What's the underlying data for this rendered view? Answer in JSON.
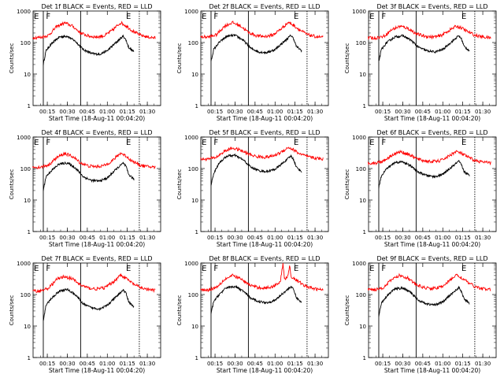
{
  "x_tick_labels": [
    "00:15",
    "00:30",
    "00:45",
    "01:00",
    "01:15",
    "01:30"
  ],
  "y_tick_labels": [
    "1",
    "10",
    "100",
    "1000"
  ],
  "ylabel": "Counts/sec",
  "xlabel": "Start Time (18-Aug-11 00:04:20)",
  "colors": {
    "events": "#000000",
    "lld": "#ff0000"
  },
  "chart_data": [
    {
      "type": "line",
      "title": "Det 1f BLACK = Events, RED = LLD",
      "markers": [
        "E",
        "F",
        "E"
      ],
      "y_scale": "log",
      "ylim": [
        1,
        1000
      ],
      "xlim": [
        "00:04:20",
        "01:40:00"
      ],
      "series": [
        {
          "name": "Events",
          "x": [
            "00:12",
            "00:14",
            "00:18",
            "00:24",
            "00:30",
            "00:36",
            "00:42",
            "00:48",
            "00:54",
            "01:00",
            "01:06",
            "01:12",
            "01:14",
            "01:16",
            "01:20"
          ],
          "values": [
            20,
            55,
            90,
            150,
            160,
            110,
            60,
            45,
            42,
            55,
            95,
            160,
            120,
            70,
            50
          ]
        },
        {
          "name": "LLD",
          "x": [
            "00:04",
            "00:10",
            "00:16",
            "00:22",
            "00:28",
            "00:34",
            "00:40",
            "00:46",
            "00:52",
            "00:58",
            "01:04",
            "01:10",
            "01:14",
            "01:18",
            "01:24",
            "01:30",
            "01:36"
          ],
          "values": [
            145,
            145,
            170,
            320,
            420,
            330,
            200,
            160,
            150,
            165,
            250,
            430,
            340,
            250,
            175,
            150,
            140
          ]
        }
      ]
    },
    {
      "type": "line",
      "title": "Det 2f BLACK = Events, RED = LLD",
      "markers": [
        "E",
        "F",
        "E"
      ],
      "y_scale": "log",
      "ylim": [
        1,
        1000
      ],
      "xlim": [
        "00:04:20",
        "01:40:00"
      ],
      "series": [
        {
          "name": "Events",
          "x": [
            "00:12",
            "00:14",
            "00:18",
            "00:24",
            "00:30",
            "00:36",
            "00:42",
            "00:48",
            "00:54",
            "01:00",
            "01:06",
            "01:12",
            "01:14",
            "01:16",
            "01:20"
          ],
          "values": [
            25,
            60,
            100,
            160,
            170,
            120,
            65,
            50,
            48,
            60,
            100,
            170,
            130,
            75,
            55
          ]
        },
        {
          "name": "LLD",
          "x": [
            "00:04",
            "00:10",
            "00:16",
            "00:22",
            "00:28",
            "00:34",
            "00:40",
            "00:46",
            "00:52",
            "00:58",
            "01:04",
            "01:10",
            "01:14",
            "01:18",
            "01:24",
            "01:30",
            "01:36"
          ],
          "values": [
            150,
            150,
            175,
            330,
            430,
            340,
            210,
            165,
            155,
            170,
            260,
            440,
            350,
            260,
            180,
            155,
            145
          ]
        }
      ]
    },
    {
      "type": "line",
      "title": "Det 3f BLACK = Events, RED = LLD",
      "markers": [
        "E",
        "F",
        "E"
      ],
      "y_scale": "log",
      "ylim": [
        1,
        1000
      ],
      "xlim": [
        "00:04:20",
        "01:40:00"
      ],
      "series": [
        {
          "name": "Events",
          "x": [
            "00:12",
            "00:14",
            "00:18",
            "00:24",
            "00:30",
            "00:36",
            "00:42",
            "00:48",
            "00:54",
            "01:00",
            "01:06",
            "01:12",
            "01:14",
            "01:16",
            "01:20"
          ],
          "values": [
            25,
            60,
            100,
            150,
            165,
            120,
            70,
            55,
            50,
            60,
            100,
            165,
            130,
            75,
            55
          ]
        },
        {
          "name": "LLD",
          "x": [
            "00:04",
            "00:10",
            "00:16",
            "00:22",
            "00:28",
            "00:34",
            "00:40",
            "00:46",
            "00:52",
            "00:58",
            "01:04",
            "01:10",
            "01:14",
            "01:18",
            "01:24",
            "01:30",
            "01:36"
          ],
          "values": [
            140,
            140,
            160,
            260,
            330,
            280,
            190,
            160,
            150,
            160,
            230,
            330,
            290,
            230,
            170,
            150,
            140
          ]
        }
      ]
    },
    {
      "type": "line",
      "title": "Det 4f BLACK = Events, RED = LLD",
      "markers": [
        "E",
        "F",
        "E"
      ],
      "y_scale": "log",
      "ylim": [
        1,
        1000
      ],
      "xlim": [
        "00:04:20",
        "01:40:00"
      ],
      "series": [
        {
          "name": "Events",
          "x": [
            "00:12",
            "00:14",
            "00:18",
            "00:24",
            "00:30",
            "00:36",
            "00:42",
            "00:48",
            "00:54",
            "01:00",
            "01:06",
            "01:12",
            "01:14",
            "01:16",
            "01:20"
          ],
          "values": [
            20,
            55,
            85,
            140,
            150,
            105,
            55,
            42,
            40,
            50,
            90,
            150,
            115,
            65,
            45
          ]
        },
        {
          "name": "LLD",
          "x": [
            "00:04",
            "00:10",
            "00:16",
            "00:22",
            "00:28",
            "00:34",
            "00:40",
            "00:46",
            "00:52",
            "00:58",
            "01:04",
            "01:10",
            "01:14",
            "01:18",
            "01:24",
            "01:30",
            "01:36"
          ],
          "values": [
            110,
            110,
            130,
            220,
            300,
            240,
            150,
            120,
            115,
            125,
            180,
            310,
            250,
            180,
            130,
            115,
            110
          ]
        }
      ]
    },
    {
      "type": "line",
      "title": "Det 5f BLACK = Events, RED = LLD",
      "markers": [
        "E",
        "F",
        "E"
      ],
      "y_scale": "log",
      "ylim": [
        1,
        1000
      ],
      "xlim": [
        "00:04:20",
        "01:40:00"
      ],
      "series": [
        {
          "name": "Events",
          "x": [
            "00:12",
            "00:14",
            "00:18",
            "00:24",
            "00:30",
            "00:36",
            "00:42",
            "00:48",
            "00:54",
            "01:00",
            "01:06",
            "01:12",
            "01:14",
            "01:16",
            "01:20"
          ],
          "values": [
            30,
            70,
            150,
            250,
            260,
            190,
            110,
            85,
            80,
            95,
            150,
            250,
            190,
            110,
            80
          ]
        },
        {
          "name": "LLD",
          "x": [
            "00:04",
            "00:10",
            "00:16",
            "00:22",
            "00:28",
            "00:34",
            "00:40",
            "00:46",
            "00:52",
            "00:58",
            "01:04",
            "01:10",
            "01:14",
            "01:18",
            "01:24",
            "01:30",
            "01:36"
          ],
          "values": [
            200,
            200,
            230,
            350,
            450,
            380,
            290,
            240,
            230,
            245,
            320,
            470,
            390,
            300,
            240,
            215,
            200
          ]
        }
      ]
    },
    {
      "type": "line",
      "title": "Det 6f BLACK = Events, RED = LLD",
      "markers": [
        "E",
        "F",
        "E"
      ],
      "y_scale": "log",
      "ylim": [
        1,
        1000
      ],
      "xlim": [
        "00:04:20",
        "01:40:00"
      ],
      "series": [
        {
          "name": "Events",
          "x": [
            "00:12",
            "00:14",
            "00:18",
            "00:24",
            "00:30",
            "00:36",
            "00:42",
            "00:48",
            "00:54",
            "01:00",
            "01:06",
            "01:12",
            "01:14",
            "01:16",
            "01:20"
          ],
          "values": [
            25,
            60,
            100,
            155,
            165,
            120,
            75,
            60,
            55,
            65,
            105,
            170,
            130,
            80,
            60
          ]
        },
        {
          "name": "LLD",
          "x": [
            "00:04",
            "00:10",
            "00:16",
            "00:22",
            "00:28",
            "00:34",
            "00:40",
            "00:46",
            "00:52",
            "00:58",
            "01:04",
            "01:10",
            "01:14",
            "01:18",
            "01:24",
            "01:30",
            "01:36"
          ],
          "values": [
            150,
            150,
            180,
            270,
            340,
            290,
            210,
            175,
            165,
            175,
            240,
            350,
            300,
            240,
            180,
            160,
            150
          ]
        }
      ]
    },
    {
      "type": "line",
      "title": "Det 7f BLACK = Events, RED = LLD",
      "markers": [
        "E",
        "F",
        "E"
      ],
      "y_scale": "log",
      "ylim": [
        1,
        1000
      ],
      "xlim": [
        "00:04:20",
        "01:40:00"
      ],
      "series": [
        {
          "name": "Events",
          "x": [
            "00:12",
            "00:14",
            "00:18",
            "00:24",
            "00:30",
            "00:36",
            "00:42",
            "00:48",
            "00:54",
            "01:00",
            "01:06",
            "01:12",
            "01:14",
            "01:16",
            "01:20"
          ],
          "values": [
            15,
            45,
            75,
            130,
            145,
            100,
            50,
            38,
            35,
            45,
            80,
            140,
            110,
            60,
            40
          ]
        },
        {
          "name": "LLD",
          "x": [
            "00:04",
            "00:10",
            "00:16",
            "00:22",
            "00:28",
            "00:34",
            "00:40",
            "00:46",
            "00:52",
            "00:58",
            "01:04",
            "01:10",
            "01:14",
            "01:18",
            "01:24",
            "01:30",
            "01:36"
          ],
          "values": [
            130,
            130,
            160,
            300,
            380,
            310,
            200,
            160,
            150,
            165,
            240,
            420,
            330,
            240,
            170,
            145,
            135
          ]
        }
      ]
    },
    {
      "type": "line",
      "title": "Det 8f BLACK = Events, RED = LLD",
      "markers": [
        "E",
        "F",
        "E"
      ],
      "y_scale": "log",
      "ylim": [
        1,
        1000
      ],
      "xlim": [
        "00:04:20",
        "01:40:00"
      ],
      "series": [
        {
          "name": "Events",
          "x": [
            "00:12",
            "00:14",
            "00:18",
            "00:24",
            "00:30",
            "00:36",
            "00:42",
            "00:48",
            "00:54",
            "01:00",
            "01:06",
            "01:12",
            "01:14",
            "01:16",
            "01:20"
          ],
          "values": [
            25,
            60,
            100,
            170,
            180,
            130,
            75,
            60,
            55,
            65,
            110,
            180,
            140,
            80,
            55
          ]
        },
        {
          "name": "LLD",
          "x": [
            "00:04",
            "00:10",
            "00:16",
            "00:22",
            "00:28",
            "00:34",
            "00:40",
            "00:46",
            "00:52",
            "00:58",
            "01:04",
            "01:06",
            "01:07",
            "01:10",
            "01:11",
            "01:12",
            "01:14",
            "01:18",
            "01:24",
            "01:30",
            "01:36"
          ],
          "values": [
            140,
            140,
            170,
            300,
            400,
            320,
            210,
            170,
            160,
            175,
            260,
            1000,
            300,
            420,
            1000,
            360,
            330,
            250,
            175,
            150,
            140
          ]
        }
      ]
    },
    {
      "type": "line",
      "title": "Det 9f BLACK = Events, RED = LLD",
      "markers": [
        "E",
        "F",
        "E"
      ],
      "y_scale": "log",
      "ylim": [
        1,
        1000
      ],
      "xlim": [
        "00:04:20",
        "01:40:00"
      ],
      "series": [
        {
          "name": "Events",
          "x": [
            "00:12",
            "00:14",
            "00:18",
            "00:24",
            "00:30",
            "00:36",
            "00:42",
            "00:48",
            "00:54",
            "01:00",
            "01:06",
            "01:12",
            "01:14",
            "01:16",
            "01:20"
          ],
          "values": [
            20,
            55,
            90,
            150,
            160,
            115,
            65,
            50,
            47,
            58,
            100,
            165,
            125,
            72,
            52
          ]
        },
        {
          "name": "LLD",
          "x": [
            "00:04",
            "00:10",
            "00:16",
            "00:22",
            "00:28",
            "00:34",
            "00:40",
            "00:46",
            "00:52",
            "00:58",
            "01:04",
            "01:10",
            "01:14",
            "01:18",
            "01:24",
            "01:30",
            "01:36"
          ],
          "values": [
            145,
            145,
            170,
            310,
            410,
            330,
            205,
            165,
            155,
            168,
            250,
            420,
            340,
            255,
            178,
            152,
            142
          ]
        }
      ]
    }
  ]
}
